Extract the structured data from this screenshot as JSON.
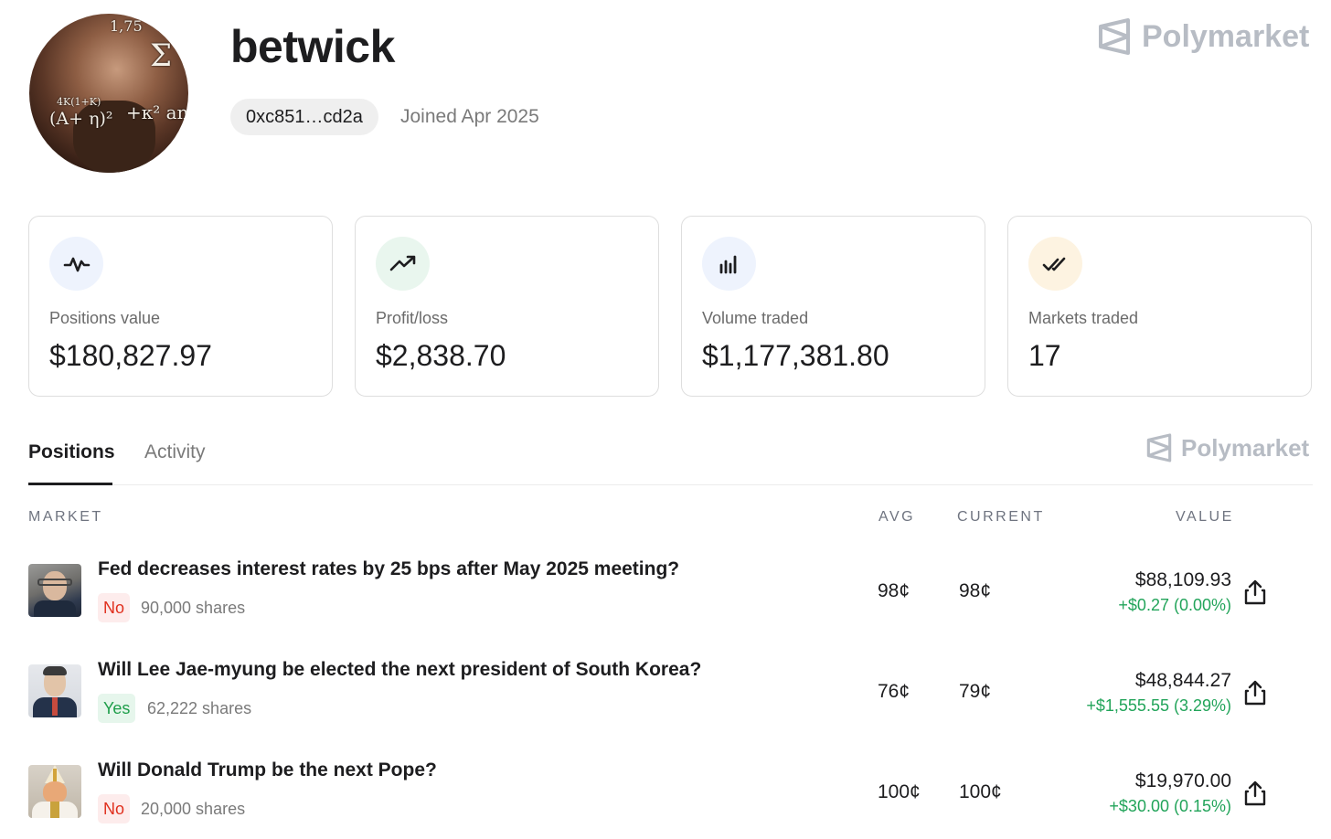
{
  "profile": {
    "username": "betwick",
    "address": "0xc851…cd2a",
    "joined": "Joined Apr 2025"
  },
  "brand": {
    "name": "Polymarket"
  },
  "stats": [
    {
      "label": "Positions value",
      "value": "$180,827.97",
      "icon": "activity-pulse-icon",
      "color": "#eef3fd"
    },
    {
      "label": "Profit/loss",
      "value": "$2,838.70",
      "icon": "trending-up-icon",
      "color": "#e9f6ee"
    },
    {
      "label": "Volume traded",
      "value": "$1,177,381.80",
      "icon": "bar-chart-icon",
      "color": "#eef3fd"
    },
    {
      "label": "Markets traded",
      "value": "17",
      "icon": "double-check-icon",
      "color": "#fdf3e1"
    }
  ],
  "tabs": [
    {
      "label": "Positions",
      "active": true
    },
    {
      "label": "Activity",
      "active": false
    }
  ],
  "table": {
    "headers": {
      "market": "MARKET",
      "avg": "AVG",
      "current": "CURRENT",
      "value": "VALUE"
    },
    "rows": [
      {
        "question": "Fed decreases interest rates by 25 bps after May 2025 meeting?",
        "outcome": "No",
        "shares": "90,000 shares",
        "avg": "98¢",
        "current": "98¢",
        "value": "$88,109.93",
        "change": "+$0.27 (0.00%)"
      },
      {
        "question": "Will Lee Jae-myung be elected the next president of South Korea?",
        "outcome": "Yes",
        "shares": "62,222 shares",
        "avg": "76¢",
        "current": "79¢",
        "value": "$48,844.27",
        "change": "+$1,555.55 (3.29%)"
      },
      {
        "question": "Will Donald Trump be the next Pope?",
        "outcome": "No",
        "shares": "20,000 shares",
        "avg": "100¢",
        "current": "100¢",
        "value": "$19,970.00",
        "change": "+$30.00 (0.15%)"
      }
    ]
  },
  "avatar_overlay": [
    "1,75",
    "Σ",
    "4K(1+K)",
    "(A+ η)²",
    "+κ² an"
  ]
}
